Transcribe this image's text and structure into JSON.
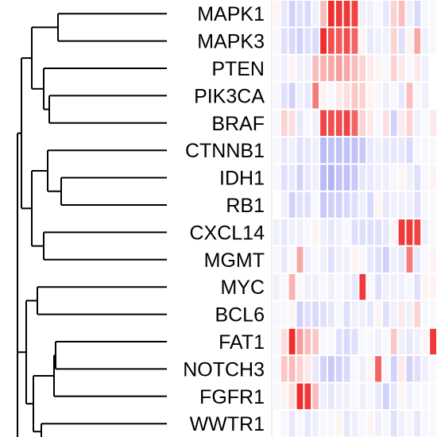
{
  "chart_data": {
    "type": "heatmap",
    "title": "",
    "xlabel": "",
    "ylabel": "",
    "dendrogram": "left",
    "colors": {
      "low": "#6666ee",
      "mid": "#ffffff",
      "high": "#ee2222",
      "cell_border": "#ffffff",
      "dendrogram_line": "#000000",
      "background": "#ffffff"
    },
    "value_range": [
      -1,
      1
    ],
    "genes": [
      "MAPK1",
      "MAPK3",
      "PTEN",
      "PIK3CA",
      "BRAF",
      "CTNNB1",
      "IDH1",
      "RB1",
      "CXCL14",
      "MGMT",
      "MYC",
      "BCL6",
      "FAT1",
      "NOTCH3",
      "FGFR1",
      "WWTR1"
    ],
    "values": [
      [
        0.05,
        -0.15,
        -0.3,
        -0.2,
        -0.25,
        -0.1,
        0.3,
        0.95,
        0.9,
        0.9,
        0.85,
        -0.1,
        -0.1,
        -0.05,
        -0.15,
        0.2,
        0.3,
        -0.1,
        -0.25,
        -0.05,
        -0.05
      ],
      [
        -0.05,
        -0.2,
        -0.25,
        -0.3,
        -0.2,
        -0.25,
        0.95,
        0.8,
        0.75,
        0.8,
        0.7,
        0.05,
        -0.15,
        -0.1,
        -0.1,
        0.2,
        -0.2,
        0.05,
        0.4,
        -0.1,
        -0.05
      ],
      [
        -0.05,
        -0.1,
        0.05,
        -0.1,
        -0.1,
        0.3,
        0.35,
        0.4,
        0.45,
        0.4,
        0.3,
        0.2,
        0.1,
        0.05,
        -0.05,
        0.2,
        0.1,
        -0.05,
        0.1,
        -0.1,
        0.0
      ],
      [
        -0.05,
        -0.2,
        -0.3,
        -0.1,
        -0.15,
        0.6,
        0.05,
        -0.05,
        0.1,
        0.15,
        0.25,
        0.2,
        0.05,
        -0.05,
        -0.1,
        -0.05,
        -0.15,
        0.3,
        -0.05,
        -0.1,
        0.0
      ],
      [
        -0.05,
        0.2,
        0.15,
        -0.15,
        -0.05,
        -0.1,
        0.85,
        0.8,
        0.8,
        0.85,
        0.7,
        0.2,
        0.1,
        -0.05,
        0.15,
        -0.3,
        0.1,
        0.2,
        -0.1,
        -0.05,
        0.1
      ],
      [
        -0.05,
        -0.15,
        -0.1,
        -0.2,
        -0.15,
        -0.1,
        -0.45,
        -0.4,
        -0.4,
        -0.4,
        -0.4,
        -0.35,
        -0.15,
        -0.1,
        -0.15,
        -0.15,
        -0.15,
        -0.25,
        -0.05,
        -0.05,
        -0.05
      ],
      [
        -0.05,
        -0.2,
        -0.15,
        -0.3,
        -0.15,
        -0.1,
        -0.45,
        -0.5,
        -0.4,
        -0.4,
        -0.35,
        -0.15,
        -0.15,
        -0.1,
        -0.1,
        -0.05,
        0.05,
        -0.1,
        -0.2,
        -0.05,
        0.05
      ],
      [
        0.0,
        -0.1,
        -0.3,
        -0.2,
        -0.2,
        -0.05,
        -0.35,
        -0.3,
        -0.3,
        -0.25,
        -0.2,
        -0.1,
        -0.25,
        0.05,
        -0.15,
        -0.1,
        -0.1,
        -0.1,
        -0.2,
        -0.05,
        -0.05
      ],
      [
        -0.1,
        -0.15,
        -0.1,
        -0.1,
        -0.05,
        0.05,
        -0.1,
        -0.15,
        -0.1,
        -0.05,
        -0.2,
        -0.2,
        -0.2,
        -0.2,
        -0.15,
        0.05,
        0.9,
        0.9,
        0.85,
        -0.1,
        -0.05
      ],
      [
        -0.05,
        -0.15,
        -0.05,
        0.4,
        -0.1,
        -0.05,
        -0.1,
        -0.2,
        -0.1,
        -0.1,
        0.05,
        -0.05,
        -0.15,
        -0.2,
        -0.3,
        -0.1,
        -0.15,
        0.6,
        -0.15,
        -0.05,
        0.05
      ],
      [
        -0.1,
        -0.05,
        0.35,
        -0.05,
        -0.1,
        -0.1,
        -0.05,
        -0.1,
        -0.05,
        -0.1,
        -0.15,
        0.9,
        -0.05,
        -0.2,
        -0.1,
        -0.1,
        -0.1,
        -0.05,
        -0.2,
        0.05,
        0.05
      ],
      [
        -0.05,
        -0.05,
        0.05,
        -0.3,
        -0.2,
        -0.25,
        -0.2,
        -0.15,
        -0.05,
        -0.2,
        -0.1,
        -0.1,
        -0.15,
        0.05,
        -0.2,
        -0.1,
        0.1,
        -0.1,
        0.2,
        -0.05,
        -0.05
      ],
      [
        -0.05,
        0.15,
        0.95,
        0.45,
        0.3,
        0.25,
        -0.05,
        -0.05,
        -0.2,
        -0.25,
        -0.2,
        -0.05,
        -0.05,
        -0.1,
        -0.05,
        0.25,
        -0.1,
        -0.15,
        -0.1,
        0.05,
        0.9
      ],
      [
        -0.05,
        0.25,
        0.3,
        0.2,
        0.1,
        -0.15,
        -0.3,
        -0.35,
        -0.3,
        -0.25,
        -0.05,
        -0.1,
        0.05,
        0.7,
        -0.05,
        -0.3,
        0.1,
        -0.3,
        -0.2,
        -0.1,
        -0.05
      ],
      [
        -0.05,
        0.05,
        0.15,
        0.95,
        0.9,
        0.3,
        -0.1,
        -0.15,
        -0.1,
        -0.1,
        -0.05,
        -0.1,
        -0.05,
        -0.15,
        -0.3,
        -0.15,
        0.05,
        -0.1,
        -0.05,
        -0.05,
        -0.05
      ],
      [
        0.0,
        -0.05,
        -0.15,
        -0.05,
        -0.15,
        -0.1,
        -0.05,
        -0.05,
        0.05,
        -0.15,
        -0.1,
        -0.05,
        0.05,
        -0.1,
        -0.05,
        -0.2,
        -0.1,
        -0.05,
        -0.15,
        -0.05,
        -0.05
      ]
    ]
  }
}
